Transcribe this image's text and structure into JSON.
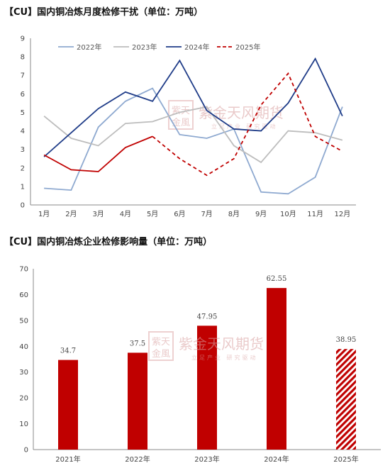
{
  "charts_meta": {
    "title1": "【CU】国内铜冶炼月度检修干扰（单位：万吨）",
    "title2": "【CU】国内铜冶炼企业检修影响量（单位：万吨）",
    "watermark_name": "紫金天风期货",
    "watermark_sub": "立足产业  研究驱动",
    "watermark_seal": "紫天金風"
  },
  "chart_data": [
    {
      "type": "line",
      "title": "【CU】国内铜冶炼月度检修干扰（单位：万吨）",
      "categories": [
        "1月",
        "2月",
        "3月",
        "4月",
        "5月",
        "6月",
        "7月",
        "8月",
        "9月",
        "10月",
        "11月",
        "12月"
      ],
      "ylim": [
        0,
        9
      ],
      "yticks": [
        0,
        1,
        2,
        3,
        4,
        5,
        6,
        7,
        8,
        9
      ],
      "legend_position": "top",
      "grid": false,
      "series": [
        {
          "name": "2022年",
          "color": "#8ea9d0",
          "dashed": false,
          "values": [
            0.9,
            0.8,
            4.2,
            5.6,
            6.3,
            3.8,
            3.6,
            4.1,
            0.7,
            0.6,
            1.5,
            5.3
          ]
        },
        {
          "name": "2023年",
          "color": "#bdbdbd",
          "dashed": false,
          "values": [
            4.8,
            3.6,
            3.2,
            4.4,
            4.5,
            5.0,
            5.3,
            3.2,
            2.3,
            4.0,
            3.9,
            3.5
          ]
        },
        {
          "name": "2024年",
          "color": "#1f3c88",
          "dashed": false,
          "values": [
            2.6,
            3.9,
            5.2,
            6.1,
            5.6,
            7.8,
            5.1,
            4.1,
            4.0,
            5.5,
            7.9,
            4.8
          ]
        },
        {
          "name": "2025年",
          "color": "#c00000",
          "dashed_from_index": 4,
          "values": [
            2.7,
            1.9,
            1.8,
            3.1,
            3.7,
            2.5,
            1.6,
            2.5,
            5.4,
            7.1,
            3.7,
            2.9
          ]
        }
      ]
    },
    {
      "type": "bar",
      "title": "【CU】国内铜冶炼企业检修影响量（单位：万吨）",
      "categories": [
        "2021年",
        "2022年",
        "2023年",
        "2024年",
        "2025年"
      ],
      "values": [
        34.7,
        37.5,
        47.95,
        62.55,
        38.95
      ],
      "labels": [
        "34.7",
        "37.5",
        "47.95",
        "62.55",
        "38.95"
      ],
      "ylim": [
        0,
        70
      ],
      "yticks": [
        0,
        10,
        20,
        30,
        40,
        50,
        60,
        70
      ],
      "bar_color": "#c00000",
      "hatched_index": 4,
      "grid": false
    }
  ]
}
